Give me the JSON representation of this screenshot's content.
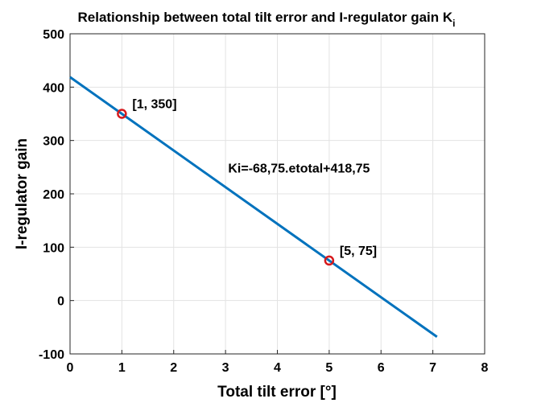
{
  "chart_data": {
    "type": "line",
    "title": "Relationship between total tilt error and I-regulator gain K",
    "title_subscript": "i",
    "xlabel": "Total tilt error [°]",
    "ylabel": "I-regulator gain",
    "xlim": [
      0,
      8
    ],
    "ylim": [
      -100,
      500
    ],
    "x_ticks": [
      "0",
      "1",
      "2",
      "3",
      "4",
      "5",
      "6",
      "7",
      "8"
    ],
    "y_ticks": [
      "-100",
      "0",
      "100",
      "200",
      "300",
      "400",
      "500"
    ],
    "grid": true,
    "series": [
      {
        "x": [
          0,
          7.08
        ],
        "y": [
          418.75,
          -68.0
        ],
        "color": "#0072BD"
      }
    ],
    "markers": [
      {
        "x": 1,
        "y": 350,
        "label": "[1, 350]",
        "color": "#D7191C"
      },
      {
        "x": 5,
        "y": 75,
        "label": "[5, 75]",
        "color": "#D7191C"
      }
    ],
    "annotations": [
      {
        "text": "Ki=-68,75.etotal+418,75",
        "x": 3.05,
        "y": 240
      }
    ]
  }
}
